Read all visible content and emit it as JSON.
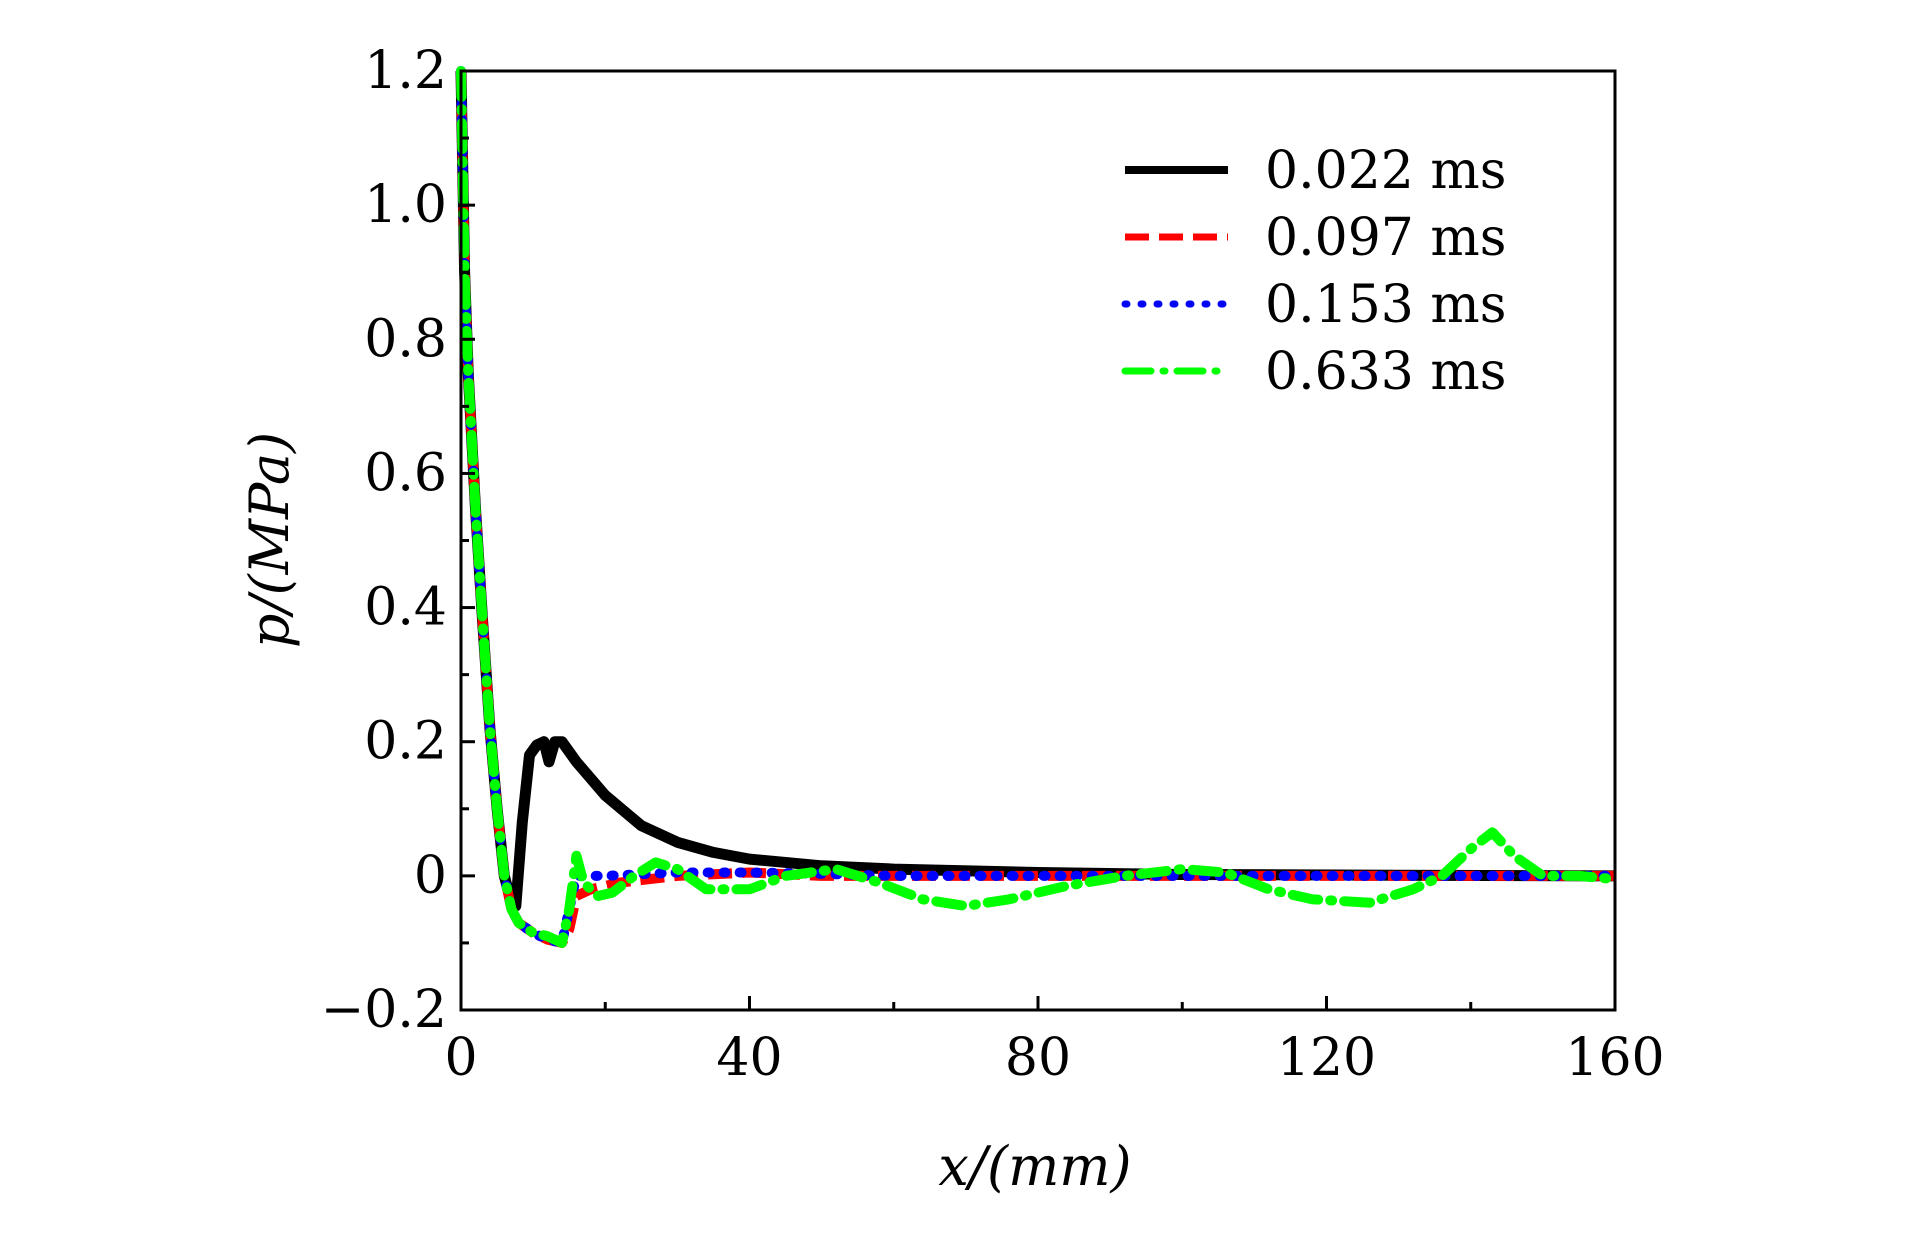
{
  "chart_data": {
    "type": "line",
    "title": "",
    "xlabel": "x/(mm)",
    "ylabel": "p/(MPa)",
    "xlim": [
      0,
      160
    ],
    "ylim": [
      -0.2,
      1.2
    ],
    "xticks": [
      "0",
      "40",
      "80",
      "120",
      "160"
    ],
    "yticks": [
      "−0.2",
      "0",
      "0.2",
      "0.4",
      "0.6",
      "0.8",
      "1.0",
      "1.2"
    ],
    "grid": false,
    "legend_position": "top-right",
    "series": [
      {
        "name": "0.022 ms",
        "color": "#000000",
        "style": "solid",
        "x": [
          0,
          0.5,
          1,
          2,
          3,
          4,
          5,
          6,
          7,
          7.6,
          8.5,
          9.5,
          10.5,
          11.5,
          12.2,
          13,
          14,
          16,
          20,
          25,
          30,
          35,
          40,
          50,
          60,
          80,
          100,
          130,
          160
        ],
        "y": [
          1.2,
          0.9,
          0.75,
          0.55,
          0.38,
          0.22,
          0.1,
          0.0,
          -0.04,
          -0.045,
          0.08,
          0.18,
          0.195,
          0.2,
          0.17,
          0.2,
          0.2,
          0.17,
          0.12,
          0.075,
          0.05,
          0.035,
          0.025,
          0.015,
          0.01,
          0.005,
          0.002,
          0.001,
          0.0
        ]
      },
      {
        "name": "0.097 ms",
        "color": "#ff0000",
        "style": "dashed",
        "x": [
          0,
          0.5,
          1,
          2,
          3,
          4,
          5,
          6,
          7,
          8,
          10,
          12,
          14,
          15,
          16,
          18,
          22,
          30,
          40,
          50,
          60,
          80,
          100,
          130,
          160
        ],
        "y": [
          1.2,
          0.9,
          0.75,
          0.55,
          0.38,
          0.22,
          0.1,
          0.0,
          -0.05,
          -0.07,
          -0.085,
          -0.095,
          -0.1,
          -0.08,
          -0.03,
          -0.02,
          -0.01,
          0.0,
          0.005,
          0.0,
          0.0,
          0.0,
          0.0,
          0.0,
          0.0
        ]
      },
      {
        "name": "0.153 ms",
        "color": "#0000ff",
        "style": "dotted",
        "x": [
          0,
          0.5,
          1,
          2,
          3,
          4,
          5,
          6,
          7,
          8,
          10,
          12,
          14,
          15,
          16,
          20,
          30,
          40,
          50,
          60,
          80,
          100,
          130,
          160
        ],
        "y": [
          1.2,
          0.9,
          0.75,
          0.55,
          0.38,
          0.22,
          0.1,
          0.0,
          -0.05,
          -0.07,
          -0.085,
          -0.095,
          -0.1,
          -0.05,
          0.0,
          0.0,
          0.005,
          0.005,
          0.003,
          0.0,
          0.0,
          0.0,
          0.0,
          0.0
        ]
      },
      {
        "name": "0.633 ms",
        "color": "#00ff00",
        "style": "dashdot",
        "x": [
          0,
          0.5,
          1,
          2,
          3,
          4,
          5,
          6,
          7,
          8,
          10,
          12,
          14,
          15,
          16,
          17,
          19,
          21,
          24,
          27,
          30,
          34,
          40,
          45,
          52,
          58,
          64,
          70,
          76,
          84,
          92,
          100,
          106,
          112,
          118,
          126,
          132,
          136,
          140,
          143,
          146,
          150,
          155,
          160
        ],
        "y": [
          1.2,
          0.9,
          0.75,
          0.55,
          0.38,
          0.22,
          0.1,
          0.0,
          -0.05,
          -0.07,
          -0.085,
          -0.09,
          -0.1,
          -0.05,
          0.03,
          -0.01,
          -0.03,
          -0.025,
          0.0,
          0.02,
          0.01,
          -0.02,
          -0.02,
          0.0,
          0.01,
          -0.01,
          -0.035,
          -0.045,
          -0.035,
          -0.015,
          0.0,
          0.01,
          0.005,
          -0.02,
          -0.035,
          -0.04,
          -0.02,
          0.0,
          0.04,
          0.065,
          0.03,
          0.0,
          0.0,
          -0.005
        ]
      }
    ]
  }
}
